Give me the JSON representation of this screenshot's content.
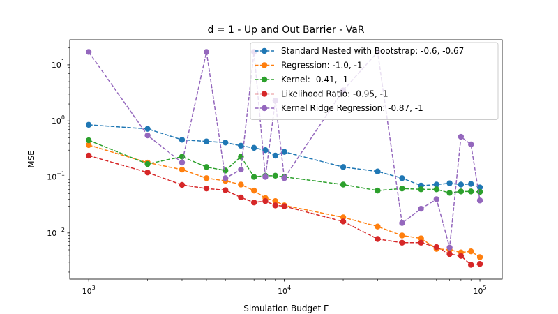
{
  "chart_data": {
    "type": "line",
    "title": "d = 1 - Up and Out Barrier - VaR",
    "xlabel": "Simulation Budget Γ",
    "ylabel": "MSE",
    "xscale": "log",
    "yscale": "log",
    "xlim": [
      800,
      130000
    ],
    "ylim": [
      0.0015,
      28
    ],
    "x_ticks": [
      {
        "value": 1000,
        "base": "10",
        "exp": "3"
      },
      {
        "value": 10000,
        "base": "10",
        "exp": "4"
      },
      {
        "value": 100000,
        "base": "10",
        "exp": "5"
      }
    ],
    "y_ticks": [
      {
        "value": 0.01,
        "base": "10",
        "exp": "−2"
      },
      {
        "value": 0.1,
        "base": "10",
        "exp": "−1"
      },
      {
        "value": 1,
        "base": "10",
        "exp": "0"
      },
      {
        "value": 10,
        "base": "10",
        "exp": "1"
      }
    ],
    "grid": false,
    "legend_position": "top-right",
    "x": [
      1000,
      2000,
      3000,
      4000,
      5000,
      6000,
      7000,
      8000,
      9000,
      10000,
      20000,
      30000,
      40000,
      50000,
      60000,
      70000,
      80000,
      90000,
      100000
    ],
    "series": [
      {
        "name": "Standard Nested with Bootstrap: -0.6, -0.67",
        "color": "#1f77b4",
        "values": [
          0.85,
          0.72,
          0.46,
          0.43,
          0.41,
          0.36,
          0.33,
          0.3,
          0.24,
          0.28,
          0.15,
          0.125,
          0.095,
          0.07,
          0.073,
          0.077,
          0.073,
          0.075,
          0.065
        ]
      },
      {
        "name": "Regression: -1.0, -1",
        "color": "#ff7f0e",
        "values": [
          0.37,
          0.18,
          0.135,
          0.095,
          0.085,
          0.073,
          0.057,
          0.042,
          0.037,
          0.031,
          0.019,
          0.013,
          0.009,
          0.008,
          0.0052,
          0.005,
          0.0045,
          0.0047,
          0.0037
        ]
      },
      {
        "name": "Kernel: -0.41, -1",
        "color": "#2ca02c",
        "values": [
          0.45,
          0.17,
          0.23,
          0.15,
          0.13,
          0.23,
          0.1,
          0.105,
          0.105,
          0.1,
          0.073,
          0.057,
          0.062,
          0.06,
          0.06,
          0.052,
          0.055,
          0.055,
          0.054
        ]
      },
      {
        "name": "Likelihood Ratio: -0.95, -1",
        "color": "#d62728",
        "values": [
          0.24,
          0.12,
          0.072,
          0.062,
          0.058,
          0.043,
          0.035,
          0.037,
          0.031,
          0.03,
          0.016,
          0.0078,
          0.0067,
          0.0067,
          0.0056,
          0.0042,
          0.0039,
          0.0027,
          0.0028
        ]
      },
      {
        "name": "Kernel Ridge Regression: -0.87, -1",
        "color": "#9467bd",
        "values": [
          17,
          0.55,
          0.18,
          17,
          0.095,
          0.135,
          17,
          0.1,
          2.3,
          0.095,
          3.5,
          17,
          0.015,
          0.027,
          0.04,
          0.0055,
          0.52,
          0.38,
          0.038
        ]
      }
    ]
  }
}
